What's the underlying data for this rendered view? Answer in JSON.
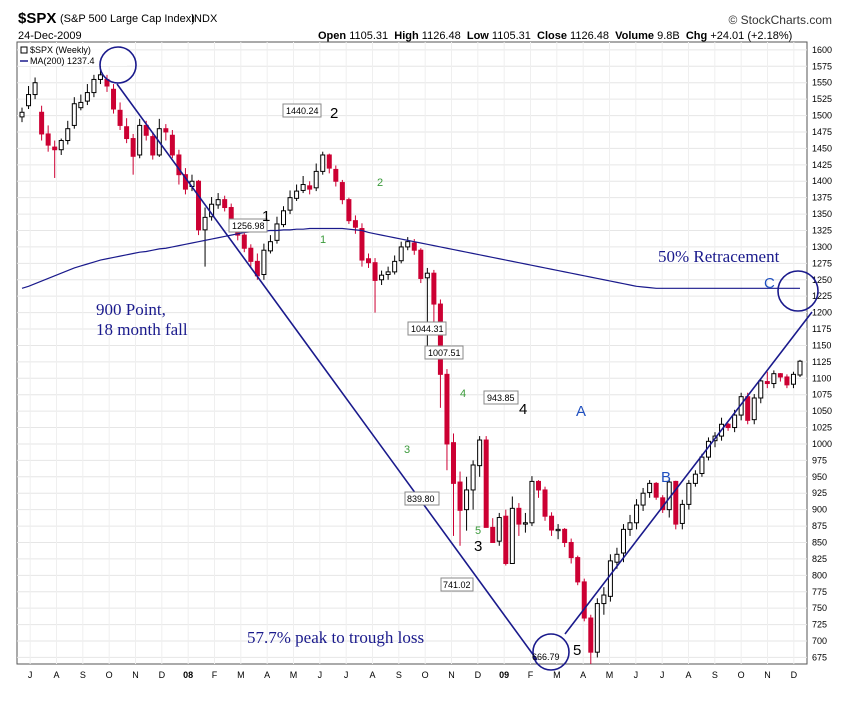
{
  "header": {
    "symbol": "$SPX",
    "index_name": "(S&P 500 Large Cap Index)",
    "exchange": "INDX",
    "date": "24-Dec-2009",
    "brand": "© StockCharts.com",
    "open_label": "Open",
    "open_value": "1105.31",
    "high_label": "High",
    "high_value": "1126.48",
    "low_label": "Low",
    "low_value": "1105.31",
    "close_label": "Close",
    "close_value": "1126.48",
    "volume_label": "Volume",
    "volume_value": "9.8B",
    "chg_label": "Chg",
    "chg_value": "+24.01 (+2.18%)"
  },
  "legend": {
    "price_entry": "$SPX (Weekly)",
    "ma_entry": "MA(200) 1237.4",
    "colors": {
      "up": "#000000",
      "down": "#cc0033",
      "ma": "#1a1a8c",
      "annotation": "#1a1a8c",
      "wave_green": "#3a9a3a",
      "letters": "#1f4fbf"
    }
  },
  "chart_data": {
    "type": "candlestick",
    "frequency": "weekly",
    "y_axis": {
      "ylim": [
        665,
        1612
      ],
      "ticks": [
        675,
        700,
        725,
        750,
        775,
        800,
        825,
        850,
        875,
        900,
        925,
        950,
        975,
        1000,
        1025,
        1050,
        1075,
        1100,
        1125,
        1150,
        1175,
        1200,
        1225,
        1250,
        1275,
        1300,
        1325,
        1350,
        1375,
        1400,
        1425,
        1450,
        1475,
        1500,
        1525,
        1550,
        1575,
        1600
      ]
    },
    "x_axis": {
      "labels": [
        "J",
        "A",
        "S",
        "O",
        "N",
        "D",
        "08",
        "F",
        "M",
        "A",
        "M",
        "J",
        "J",
        "A",
        "S",
        "O",
        "N",
        "D",
        "09",
        "F",
        "M",
        "A",
        "M",
        "J",
        "J",
        "A",
        "S",
        "O",
        "N",
        "D"
      ],
      "range": [
        "2007-07",
        "2009-12"
      ]
    },
    "grid": true,
    "close_path": [
      1505,
      1532,
      1550,
      1472,
      1455,
      1448,
      1462,
      1480,
      1518,
      1520,
      1535,
      1555,
      1562,
      1545,
      1510,
      1485,
      1465,
      1438,
      1485,
      1470,
      1440,
      1480,
      1475,
      1440,
      1410,
      1388,
      1400,
      1326,
      1345,
      1365,
      1372,
      1360,
      1330,
      1318,
      1298,
      1278,
      1256,
      1295,
      1308,
      1335,
      1355,
      1375,
      1385,
      1395,
      1388,
      1415,
      1440,
      1420,
      1400,
      1372,
      1340,
      1330,
      1280,
      1276,
      1249,
      1257,
      1262,
      1278,
      1300,
      1308,
      1295,
      1252,
      1260,
      1213,
      1106,
      1000,
      940,
      899,
      930,
      968,
      1006,
      873,
      850,
      888,
      818,
      902,
      878,
      880,
      943,
      930,
      890,
      869,
      870,
      850,
      827,
      790,
      735,
      683,
      757,
      770,
      822,
      832,
      870,
      880,
      907,
      925,
      940,
      919,
      900,
      942,
      878,
      908,
      940,
      954,
      980,
      1004,
      1012,
      1030,
      1025,
      1044,
      1072,
      1036,
      1070,
      1096,
      1092,
      1107,
      1102,
      1090,
      1106,
      1126
    ],
    "candles": {
      "open": [
        1498,
        1515,
        1532,
        1505,
        1472,
        1452,
        1448,
        1462,
        1485,
        1512,
        1522,
        1535,
        1555,
        1555,
        1540,
        1508,
        1483,
        1465,
        1440,
        1485,
        1468,
        1440,
        1480,
        1470,
        1440,
        1410,
        1392,
        1400,
        1326,
        1346,
        1364,
        1372,
        1360,
        1330,
        1318,
        1298,
        1278,
        1258,
        1294,
        1310,
        1334,
        1356,
        1374,
        1386,
        1393,
        1390,
        1415,
        1440,
        1418,
        1398,
        1372,
        1340,
        1328,
        1282,
        1276,
        1250,
        1258,
        1262,
        1279,
        1300,
        1306,
        1295,
        1253,
        1260,
        1213,
        1106,
        1002,
        942,
        900,
        930,
        967,
        1006,
        873,
        852,
        890,
        818,
        902,
        878,
        880,
        943,
        930,
        890,
        868,
        870,
        850,
        827,
        790,
        735,
        683,
        757,
        768,
        820,
        834,
        870,
        880,
        907,
        926,
        940,
        918,
        900,
        943,
        879,
        908,
        940,
        955,
        980,
        1005,
        1012,
        1030,
        1025,
        1044,
        1072,
        1037,
        1070,
        1095,
        1092,
        1107,
        1102,
        1091,
        1105
      ],
      "high": [
        1512,
        1545,
        1558,
        1515,
        1485,
        1462,
        1465,
        1492,
        1528,
        1532,
        1548,
        1562,
        1578,
        1562,
        1548,
        1520,
        1496,
        1472,
        1495,
        1492,
        1475,
        1495,
        1487,
        1478,
        1448,
        1420,
        1410,
        1402,
        1360,
        1376,
        1382,
        1378,
        1366,
        1340,
        1325,
        1304,
        1290,
        1305,
        1318,
        1346,
        1362,
        1386,
        1395,
        1408,
        1400,
        1427,
        1445,
        1442,
        1424,
        1402,
        1375,
        1348,
        1336,
        1290,
        1283,
        1264,
        1270,
        1287,
        1308,
        1315,
        1312,
        1298,
        1268,
        1265,
        1220,
        1114,
        1016,
        958,
        950,
        975,
        1012,
        1012,
        887,
        895,
        900,
        920,
        910,
        895,
        951,
        945,
        935,
        896,
        878,
        872,
        856,
        830,
        795,
        740,
        765,
        782,
        832,
        842,
        878,
        892,
        916,
        933,
        945,
        942,
        922,
        948,
        944,
        915,
        945,
        960,
        985,
        1010,
        1018,
        1040,
        1032,
        1052,
        1078,
        1078,
        1076,
        1100,
        1110,
        1112,
        1108,
        1106,
        1110,
        1128
      ],
      "low": [
        1490,
        1510,
        1525,
        1462,
        1445,
        1405,
        1440,
        1456,
        1480,
        1508,
        1516,
        1528,
        1548,
        1536,
        1503,
        1478,
        1458,
        1410,
        1435,
        1462,
        1433,
        1437,
        1462,
        1435,
        1395,
        1380,
        1385,
        1318,
        1270,
        1340,
        1358,
        1354,
        1322,
        1310,
        1292,
        1270,
        1250,
        1250,
        1290,
        1305,
        1330,
        1350,
        1370,
        1382,
        1380,
        1385,
        1410,
        1412,
        1392,
        1365,
        1335,
        1320,
        1270,
        1268,
        1200,
        1242,
        1250,
        1258,
        1275,
        1295,
        1288,
        1245,
        1135,
        1185,
        1055,
        960,
        860,
        845,
        868,
        900,
        950,
        875,
        860,
        845,
        815,
        818,
        860,
        865,
        875,
        918,
        883,
        860,
        855,
        843,
        818,
        785,
        730,
        665,
        675,
        740,
        760,
        810,
        820,
        860,
        870,
        898,
        918,
        915,
        895,
        888,
        870,
        870,
        900,
        935,
        950,
        975,
        995,
        1005,
        1020,
        1018,
        1036,
        1030,
        1030,
        1062,
        1085,
        1085,
        1095,
        1085,
        1085,
        1102
      ],
      "close": [
        1505,
        1532,
        1550,
        1472,
        1455,
        1448,
        1462,
        1480,
        1518,
        1520,
        1535,
        1555,
        1562,
        1545,
        1510,
        1485,
        1465,
        1438,
        1485,
        1470,
        1440,
        1480,
        1475,
        1440,
        1410,
        1388,
        1400,
        1326,
        1345,
        1365,
        1372,
        1360,
        1330,
        1318,
        1298,
        1278,
        1256,
        1295,
        1308,
        1335,
        1355,
        1375,
        1385,
        1395,
        1388,
        1415,
        1440,
        1420,
        1400,
        1372,
        1340,
        1330,
        1280,
        1276,
        1249,
        1257,
        1262,
        1278,
        1300,
        1308,
        1295,
        1252,
        1260,
        1213,
        1106,
        1000,
        940,
        899,
        930,
        968,
        1006,
        873,
        850,
        888,
        818,
        902,
        878,
        880,
        943,
        930,
        890,
        869,
        870,
        850,
        827,
        790,
        735,
        683,
        757,
        770,
        822,
        832,
        870,
        880,
        907,
        925,
        940,
        919,
        900,
        942,
        878,
        908,
        940,
        954,
        980,
        1004,
        1012,
        1030,
        1025,
        1044,
        1072,
        1036,
        1070,
        1096,
        1092,
        1107,
        1102,
        1090,
        1106,
        1126
      ]
    },
    "ma200": [
      1237,
      1240,
      1244,
      1248,
      1252,
      1256,
      1260,
      1264,
      1268,
      1271,
      1274,
      1277,
      1280,
      1282,
      1284,
      1286,
      1288,
      1290,
      1292,
      1293,
      1295,
      1297,
      1298,
      1300,
      1302,
      1304,
      1306,
      1308,
      1310,
      1312,
      1314,
      1316,
      1318,
      1320,
      1322,
      1323,
      1324,
      1324,
      1325,
      1325,
      1326,
      1326,
      1327,
      1327,
      1328,
      1328,
      1328,
      1328,
      1328,
      1328,
      1327,
      1326,
      1325,
      1322,
      1320,
      1318,
      1316,
      1314,
      1312,
      1310,
      1308,
      1306,
      1304,
      1302,
      1300,
      1298,
      1296,
      1294,
      1292,
      1290,
      1288,
      1286,
      1284,
      1282,
      1280,
      1278,
      1276,
      1274,
      1272,
      1270,
      1268,
      1266,
      1264,
      1262,
      1260,
      1258,
      1256,
      1254,
      1252,
      1250,
      1248,
      1246,
      1244,
      1242,
      1240,
      1239,
      1238,
      1237,
      1237,
      1237,
      1237,
      1237,
      1237,
      1237,
      1237,
      1237,
      1237,
      1237,
      1237,
      1237,
      1237,
      1237,
      1237,
      1237,
      1237,
      1237,
      1237,
      1237,
      1237,
      1237
    ]
  },
  "annotations": {
    "price_labels": [
      "1440.24",
      "1256.98",
      "1044.31",
      "1007.51",
      "943.85",
      "839.80",
      "741.02",
      "666.79"
    ],
    "wave_black": [
      "1",
      "2",
      "3",
      "4",
      "5"
    ],
    "wave_green": [
      "1",
      "2",
      "3",
      "4",
      "5"
    ],
    "wave_letters": [
      "A",
      "B",
      "C"
    ],
    "text_fall_line1": "900 Point,",
    "text_fall_line2": "18 month fall",
    "text_retracement": "50% Retracement",
    "text_loss": "57.7% peak to trough loss"
  }
}
